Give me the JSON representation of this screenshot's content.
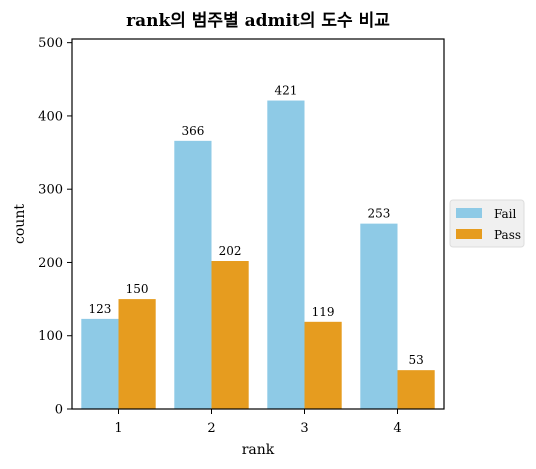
{
  "chart_data": {
    "type": "bar",
    "title": "rank의 범주별 admit의 도수 비교",
    "xlabel": "rank",
    "ylabel": "count",
    "categories": [
      "1",
      "2",
      "3",
      "4"
    ],
    "series": [
      {
        "name": "Fail",
        "values": [
          123,
          366,
          421,
          253
        ],
        "color": "#8ecae6"
      },
      {
        "name": "Pass",
        "values": [
          150,
          202,
          119,
          53
        ],
        "color": "#e69c1f"
      }
    ],
    "ylim": [
      0,
      505
    ],
    "yticks": [
      0,
      100,
      200,
      300,
      400,
      500
    ],
    "grid": false,
    "legend_position": "right-center"
  }
}
